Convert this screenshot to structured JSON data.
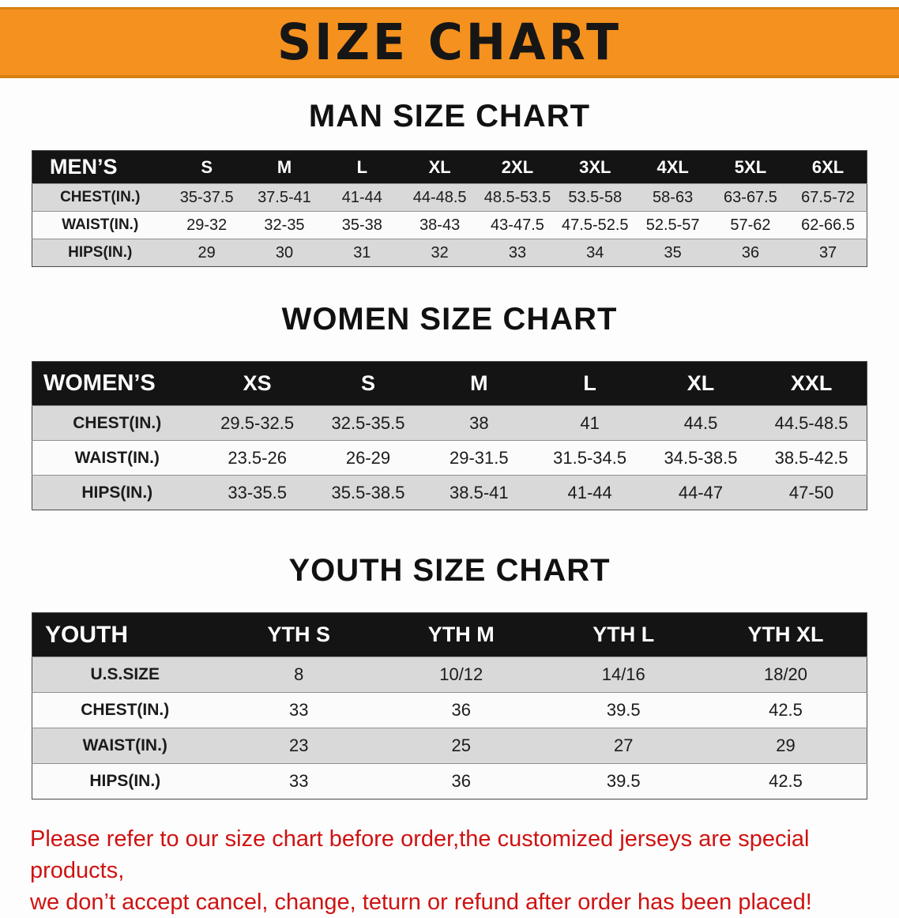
{
  "banner": {
    "title": "SIZE CHART"
  },
  "sections": {
    "men": {
      "heading": "MAN SIZE CHART",
      "table": {
        "header": [
          "MEN’S",
          "S",
          "M",
          "L",
          "XL",
          "2XL",
          "3XL",
          "4XL",
          "5XL",
          "6XL"
        ],
        "rows": [
          [
            "CHEST(IN.)",
            "35-37.5",
            "37.5-41",
            "41-44",
            "44-48.5",
            "48.5-53.5",
            "53.5-58",
            "58-63",
            "63-67.5",
            "67.5-72"
          ],
          [
            "WAIST(IN.)",
            "29-32",
            "32-35",
            "35-38",
            "38-43",
            "43-47.5",
            "47.5-52.5",
            "52.5-57",
            "57-62",
            "62-66.5"
          ],
          [
            "HIPS(IN.)",
            "29",
            "30",
            "31",
            "32",
            "33",
            "34",
            "35",
            "36",
            "37"
          ]
        ]
      }
    },
    "women": {
      "heading": "WOMEN SIZE CHART",
      "table": {
        "header": [
          "WOMEN’S",
          "XS",
          "S",
          "M",
          "L",
          "XL",
          "XXL"
        ],
        "rows": [
          [
            "CHEST(IN.)",
            "29.5-32.5",
            "32.5-35.5",
            "38",
            "41",
            "44.5",
            "44.5-48.5"
          ],
          [
            "WAIST(IN.)",
            "23.5-26",
            "26-29",
            "29-31.5",
            "31.5-34.5",
            "34.5-38.5",
            "38.5-42.5"
          ],
          [
            "HIPS(IN.)",
            "33-35.5",
            "35.5-38.5",
            "38.5-41",
            "41-44",
            "44-47",
            "47-50"
          ]
        ]
      }
    },
    "youth": {
      "heading": "YOUTH SIZE CHART",
      "table": {
        "header": [
          "YOUTH",
          "YTH S",
          "YTH M",
          "YTH L",
          "YTH XL"
        ],
        "rows": [
          [
            "U.S.SIZE",
            "8",
            "10/12",
            "14/16",
            "18/20"
          ],
          [
            "CHEST(IN.)",
            "33",
            "36",
            "39.5",
            "42.5"
          ],
          [
            "WAIST(IN.)",
            "23",
            "25",
            "27",
            "29"
          ],
          [
            "HIPS(IN.)",
            "33",
            "36",
            "39.5",
            "42.5"
          ]
        ]
      }
    }
  },
  "footer": {
    "line1": "Please refer to our size chart before order,the customized jerseys are special products,",
    "line2": "we don’t accept cancel, change, teturn or refund after order has been placed!"
  },
  "colors": {
    "banner_orange": "#f5911e",
    "header_black": "#141414",
    "row_gray": "#d9d9d9",
    "notice_red": "#cf1212"
  }
}
